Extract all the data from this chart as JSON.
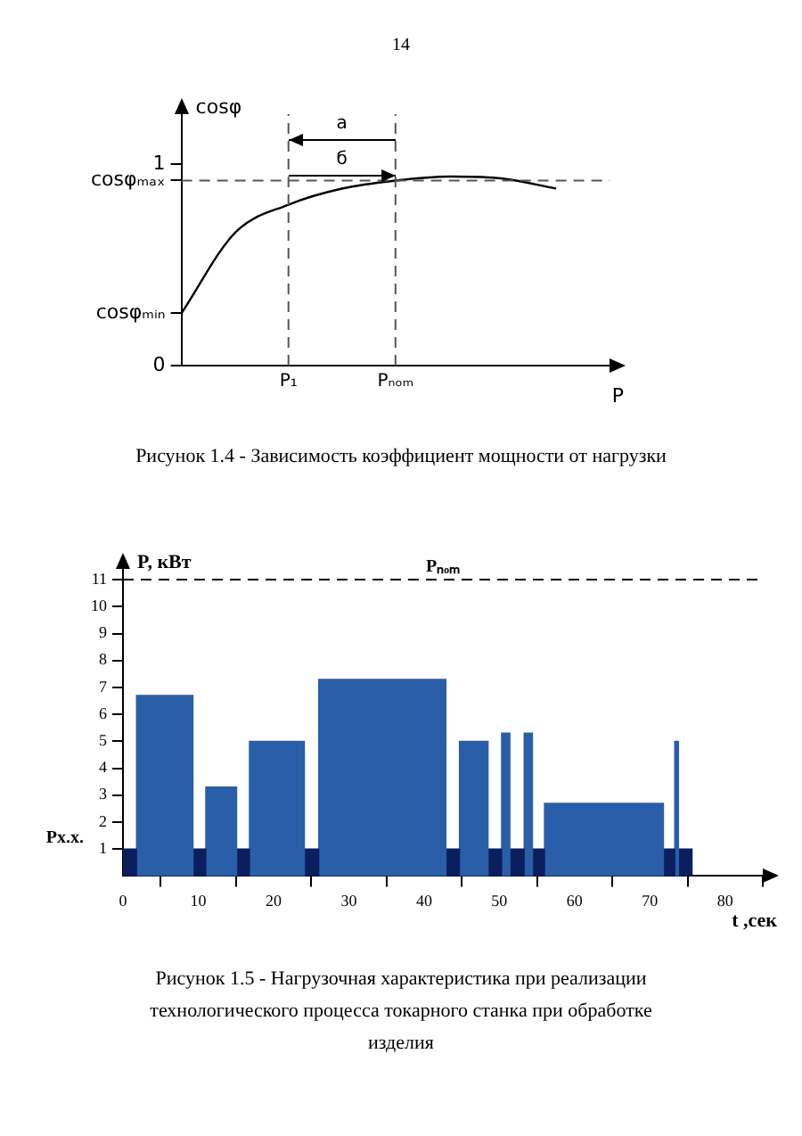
{
  "chart_data": [
    {
      "type": "line",
      "title": "14",
      "xlabel": "P",
      "ylabel": "cosφ",
      "categories": [
        null,
        null,
        "P₁",
        null,
        "Pₙₒₘ",
        null,
        null,
        null,
        null
      ],
      "series": [
        {
          "color": "#000000",
          "values": [
            0.26,
            0.66,
            0.8,
            0.88,
            0.92,
            0.94,
            0.93,
            0.88,
            null
          ]
        }
      ],
      "ylim": [
        0,
        1.25
      ],
      "yticks": [
        0,
        {
          "value": 0.26,
          "label": "cosφₘᵢₙ"
        },
        {
          "value": 0.92,
          "label": "cosφₘₐₓ"
        },
        1
      ],
      "ref_lines": [
        {
          "axis": "x",
          "value": "P₁",
          "line_style": "dashed",
          "color": "#555555"
        },
        {
          "axis": "x",
          "value": "Pₙₒₘ",
          "line_style": "dashed",
          "color": "#555555"
        },
        {
          "axis": "y",
          "value": 0.92,
          "line_style": "dashed",
          "color": "#555555"
        }
      ],
      "grid": false,
      "annotations": [
        "а",
        "б",
        "Рисунок  1.4 - Зависимость коэффициент мощности от нагрузки"
      ]
    },
    {
      "type": "histogram",
      "xlabel": "t ,сек",
      "ylabel": "P, кВт",
      "bins": [
        0,
        1.8,
        9.3,
        11,
        15.1,
        16.8,
        24.1,
        26,
        42.9,
        44.7,
        48.5,
        50.3,
        51.4,
        53.3,
        54.4,
        56,
        71.8,
        73.3,
        73.8,
        75.6
      ],
      "values": [
        1,
        6.7,
        1,
        3.3,
        1,
        5,
        1,
        7.3,
        1,
        5,
        1,
        5.3,
        1,
        5.3,
        1,
        2.7,
        1,
        5,
        1
      ],
      "colors": [
        "#0b1f5e",
        "#2a5ea8",
        "#0b1f5e",
        "#2a5ea8",
        "#0b1f5e",
        "#2a5ea8",
        "#0b1f5e",
        "#2a5ea8",
        "#0b1f5e",
        "#2a5ea8",
        "#0b1f5e",
        "#2a5ea8",
        "#0b1f5e",
        "#2a5ea8",
        "#0b1f5e",
        "#2a5ea8",
        "#0b1f5e",
        "#2a5ea8",
        "#0b1f5e"
      ],
      "xlim": [
        0,
        85
      ],
      "xticks": [
        0,
        10,
        20,
        30,
        40,
        50,
        60,
        70,
        80
      ],
      "ylim": [
        0,
        11.4
      ],
      "yticks": [
        1,
        2,
        3,
        4,
        5,
        6,
        7,
        8,
        9,
        10,
        11
      ],
      "ref_lines": [
        {
          "axis": "y",
          "value": 11,
          "label": "Pₙₒₘ",
          "line_style": "dashed",
          "color": "#000000"
        }
      ],
      "grid": false,
      "annotations": [
        "Px.x.",
        "Рисунок 1.5 - Нагрузочная характеристика при реализации технологического процесса токарного станка при обработке изделия"
      ]
    }
  ]
}
